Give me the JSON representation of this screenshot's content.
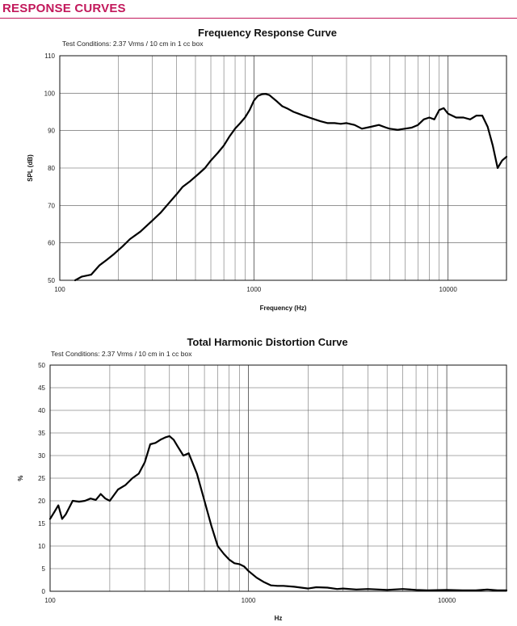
{
  "header": {
    "title": "RESPONSE CURVES"
  },
  "chart_data": [
    {
      "type": "line",
      "title": "Frequency Response Curve",
      "subtitle": "Test Conditions: 2.37 Vrms / 10 cm in 1 cc box",
      "xlabel": "Frequency (Hz)",
      "ylabel": "SPL (dB)",
      "xscale": "log",
      "xlim": [
        100,
        20000
      ],
      "ylim": [
        50,
        110
      ],
      "xticks": [
        100,
        1000,
        10000
      ],
      "xtick_labels": [
        "100",
        "1000",
        "10000"
      ],
      "yticks": [
        50,
        60,
        70,
        80,
        90,
        100,
        110
      ],
      "ytick_labels": [
        "50",
        "60",
        "70",
        "80",
        "90",
        "100",
        "110"
      ],
      "grid": true,
      "series": [
        {
          "x": [
            120,
            130,
            145,
            160,
            175,
            190,
            210,
            230,
            260,
            300,
            330,
            370,
            400,
            430,
            470,
            520,
            560,
            600,
            650,
            700,
            750,
            800,
            850,
            900,
            950,
            1000,
            1050,
            1100,
            1150,
            1200,
            1300,
            1400,
            1500,
            1600,
            1700,
            1800,
            2000,
            2200,
            2400,
            2600,
            2800,
            3000,
            3300,
            3600,
            4000,
            4400,
            4800,
            5000,
            5500,
            6000,
            6500,
            7000,
            7500,
            8000,
            8500,
            9000,
            9500,
            10000,
            10500,
            11000,
            12000,
            13000,
            14000,
            15000,
            16000,
            17000,
            18000,
            19000,
            20000
          ],
          "values": [
            50,
            51,
            51.5,
            54,
            55.5,
            57,
            59,
            61,
            63,
            66,
            68,
            71,
            73,
            75,
            76.5,
            78.5,
            80,
            82,
            84,
            86,
            88.5,
            90.5,
            92,
            93.5,
            95.5,
            98,
            99.3,
            99.7,
            99.8,
            99.5,
            98,
            96.5,
            95.8,
            95,
            94.5,
            94,
            93.2,
            92.5,
            92,
            92,
            91.8,
            92,
            91.5,
            90.5,
            91,
            91.5,
            90.8,
            90.5,
            90.2,
            90.5,
            90.8,
            91.5,
            93,
            93.5,
            93,
            95.5,
            96,
            94.5,
            94,
            93.5,
            93.5,
            93,
            94,
            94,
            91,
            86,
            80,
            82,
            83
          ]
        }
      ]
    },
    {
      "type": "line",
      "title": "Total Harmonic Distortion Curve",
      "subtitle": "Test Conditions: 2.37 Vrms / 10 cm in 1 cc box",
      "xlabel": "Hz",
      "ylabel": "%",
      "xscale": "log",
      "xlim": [
        100,
        20000
      ],
      "ylim": [
        0,
        50
      ],
      "xticks": [
        100,
        1000,
        10000
      ],
      "xtick_labels": [
        "100",
        "1000",
        "10000"
      ],
      "yticks": [
        0,
        5,
        10,
        15,
        20,
        25,
        30,
        35,
        40,
        45,
        50
      ],
      "ytick_labels": [
        "0",
        "5",
        "10",
        "15",
        "20",
        "25",
        "30",
        "35",
        "40",
        "45",
        "50"
      ],
      "grid": true,
      "series": [
        {
          "x": [
            100,
            105,
            110,
            115,
            120,
            130,
            140,
            150,
            160,
            170,
            180,
            190,
            200,
            220,
            240,
            260,
            280,
            300,
            320,
            340,
            360,
            380,
            400,
            420,
            440,
            470,
            500,
            550,
            600,
            650,
            700,
            750,
            800,
            850,
            900,
            950,
            1000,
            1100,
            1200,
            1300,
            1400,
            1500,
            1700,
            2000,
            2200,
            2500,
            2800,
            3000,
            3500,
            4000,
            5000,
            6000,
            7000,
            8000,
            10000,
            12000,
            14000,
            16000,
            18000,
            20000
          ],
          "values": [
            16,
            17.5,
            19,
            16,
            17,
            20,
            19.8,
            20,
            20.5,
            20.2,
            21.5,
            20.5,
            20,
            22.5,
            23.5,
            25,
            26,
            28.5,
            32.5,
            32.8,
            33.5,
            34,
            34.3,
            33.5,
            32,
            30,
            30.5,
            26,
            20,
            14.5,
            10,
            8.3,
            7,
            6.2,
            6,
            5.5,
            4.5,
            3,
            2,
            1.3,
            1.2,
            1.2,
            1.0,
            0.6,
            0.9,
            0.8,
            0.5,
            0.6,
            0.4,
            0.5,
            0.3,
            0.5,
            0.3,
            0.2,
            0.3,
            0.2,
            0.2,
            0.4,
            0.2,
            0.2
          ]
        }
      ]
    }
  ]
}
